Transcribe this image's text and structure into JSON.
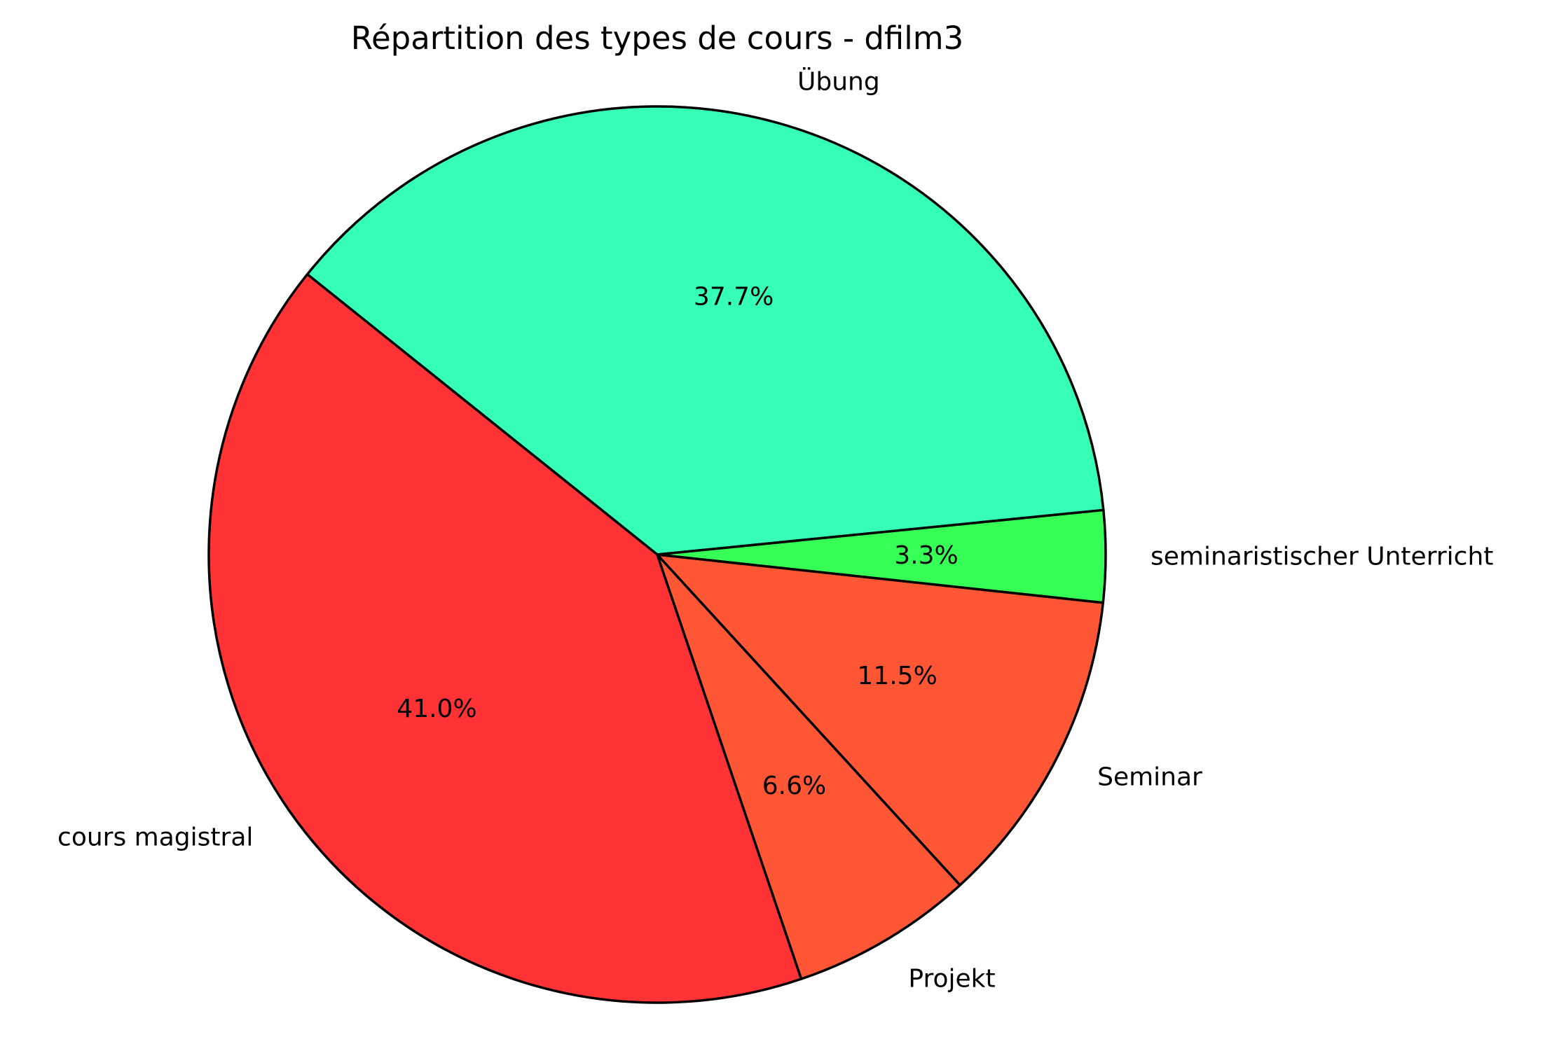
{
  "chart_data": {
    "type": "pie",
    "title": "Répartition des types de cours - dfilm3",
    "slices": [
      {
        "label": "Übung",
        "value": 37.7,
        "pct_label": "37.7%",
        "color": "#36FFB6"
      },
      {
        "label": "cours magistral",
        "value": 41.0,
        "pct_label": "41.0%",
        "color": "#FF3336"
      },
      {
        "label": "Projekt",
        "value": 6.6,
        "pct_label": "6.6%",
        "color": "#FF5736"
      },
      {
        "label": "Seminar",
        "value": 11.5,
        "pct_label": "11.5%",
        "color": "#FF5736"
      },
      {
        "label": "seminaristischer Unterricht",
        "value": 3.3,
        "pct_label": "3.3%",
        "color": "#36FF55"
      }
    ],
    "start_angle_deg": 5.7,
    "direction": "counterclockwise",
    "edge_color": "#000000",
    "legend": "none"
  }
}
